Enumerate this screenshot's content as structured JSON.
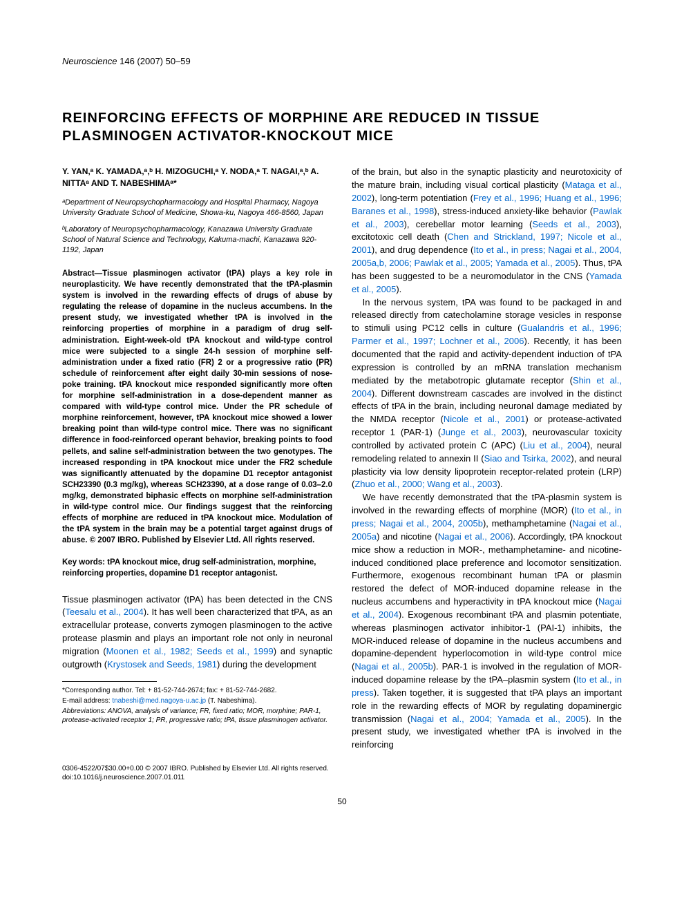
{
  "journal": {
    "name": "Neuroscience",
    "citation": "146 (2007) 50–59"
  },
  "title": "REINFORCING EFFECTS OF MORPHINE ARE REDUCED IN TISSUE PLASMINOGEN ACTIVATOR-KNOCKOUT MICE",
  "authors": "Y. YAN,ᵃ K. YAMADA,ᵃ,ᵇ H. MIZOGUCHI,ᵃ Y. NODA,ᵃ T. NAGAI,ᵃ,ᵇ A. NITTAᵃ AND T. NABESHIMAᵃ*",
  "affiliations": {
    "a": "ᵃDepartment of Neuropsychopharmacology and Hospital Pharmacy, Nagoya University Graduate School of Medicine, Showa-ku, Nagoya 466-8560, Japan",
    "b": "ᵇLaboratory of Neuropsychopharmacology, Kanazawa University Graduate School of Natural Science and Technology, Kakuma-machi, Kanazawa 920-1192, Japan"
  },
  "abstract": "Abstract—Tissue plasminogen activator (tPA) plays a key role in neuroplasticity. We have recently demonstrated that the tPA-plasmin system is involved in the rewarding effects of drugs of abuse by regulating the release of dopamine in the nucleus accumbens. In the present study, we investigated whether tPA is involved in the reinforcing properties of morphine in a paradigm of drug self-administration. Eight-week-old tPA knockout and wild-type control mice were subjected to a single 24-h session of morphine self-administration under a fixed ratio (FR) 2 or a progressive ratio (PR) schedule of reinforcement after eight daily 30-min sessions of nose-poke training. tPA knockout mice responded significantly more often for morphine self-administration in a dose-dependent manner as compared with wild-type control mice. Under the PR schedule of morphine reinforcement, however, tPA knockout mice showed a lower breaking point than wild-type control mice. There was no significant difference in food-reinforced operant behavior, breaking points to food pellets, and saline self-administration between the two genotypes. The increased responding in tPA knockout mice under the FR2 schedule was significantly attenuated by the dopamine D1 receptor antagonist SCH23390 (0.3 mg/kg), whereas SCH23390, at a dose range of 0.03–2.0 mg/kg, demonstrated biphasic effects on morphine self-administration in wild-type control mice. Our findings suggest that the reinforcing effects of morphine are reduced in tPA knockout mice. Modulation of the tPA system in the brain may be a potential target against drugs of abuse. © 2007 IBRO. Published by Elsevier Ltd. All rights reserved.",
  "keywords": "Key words: tPA knockout mice, drug self-administration, morphine, reinforcing properties, dopamine D1 receptor antagonist.",
  "body_left": {
    "p1a": "Tissue plasminogen activator (tPA) has been detected in the CNS (",
    "p1_link1": "Teesalu et al., 2004",
    "p1b": "). It has well been characterized that tPA, as an extracellular protease, converts zymogen plasminogen to the active protease plasmin and plays an important role not only in neuronal migration (",
    "p1_link2": "Moonen et al., 1982; Seeds et al., 1999",
    "p1c": ") and synaptic outgrowth (",
    "p1_link3": "Krystosek and Seeds, 1981",
    "p1d": ") during the development"
  },
  "footnotes": {
    "corr": "*Corresponding author. Tel: + 81-52-744-2674; fax: + 81-52-744-2682.",
    "email_label": "E-mail address: ",
    "email": "tnabeshi@med.nagoya-u.ac.jp",
    "email_tail": " (T. Nabeshima).",
    "abbrev": "Abbreviations: ANOVA, analysis of variance; FR, fixed ratio; MOR, morphine; PAR-1, protease-activated receptor 1; PR, progressive ratio; tPA, tissue plasminogen activator."
  },
  "body_right": {
    "p1a": "of the brain, but also in the synaptic plasticity and neurotoxicity of the mature brain, including visual cortical plasticity (",
    "p1_l1": "Mataga et al., 2002",
    "p1b": "), long-term potentiation (",
    "p1_l2": "Frey et al., 1996; Huang et al., 1996; Baranes et al., 1998",
    "p1c": "), stress-induced anxiety-like behavior (",
    "p1_l3": "Pawlak et al., 2003",
    "p1d": "), cerebellar motor learning (",
    "p1_l4": "Seeds et al., 2003",
    "p1e": "), excitotoxic cell death (",
    "p1_l5": "Chen and Strickland, 1997; Nicole et al., 2001",
    "p1f": "), and drug dependence (",
    "p1_l6": "Ito et al., in press; Nagai et al., 2004, 2005a,b, 2006; Pawlak et al., 2005; Yamada et al., 2005",
    "p1g": "). Thus, tPA has been suggested to be a neuromodulator in the CNS (",
    "p1_l7": "Yamada et al., 2005",
    "p1h": ").",
    "p2a": "In the nervous system, tPA was found to be packaged in and released directly from catecholamine storage vesicles in response to stimuli using PC12 cells in culture (",
    "p2_l1": "Gualandris et al., 1996; Parmer et al., 1997; Lochner et al., 2006",
    "p2b": "). Recently, it has been documented that the rapid and activity-dependent induction of tPA expression is controlled by an mRNA translation mechanism mediated by the metabotropic glutamate receptor (",
    "p2_l2": "Shin et al., 2004",
    "p2c": "). Different downstream cascades are involved in the distinct effects of tPA in the brain, including neuronal damage mediated by the NMDA receptor (",
    "p2_l3": "Nicole et al., 2001",
    "p2d": ") or protease-activated receptor 1 (PAR-1) (",
    "p2_l4": "Junge et al., 2003",
    "p2e": "), neurovascular toxicity controlled by activated protein C (APC) (",
    "p2_l5": "Liu et al., 2004",
    "p2f": "), neural remodeling related to annexin II (",
    "p2_l6": "Siao and Tsirka, 2002",
    "p2g": "), and neural plasticity via low density lipoprotein receptor-related protein (LRP) (",
    "p2_l7": "Zhuo et al., 2000; Wang et al., 2003",
    "p2h": ").",
    "p3a": "We have recently demonstrated that the tPA-plasmin system is involved in the rewarding effects of morphine (MOR) (",
    "p3_l1": "Ito et al., in press; Nagai et al., 2004, 2005b",
    "p3b": "), methamphetamine (",
    "p3_l2": "Nagai et al., 2005a",
    "p3c": ") and nicotine (",
    "p3_l3": "Nagai et al., 2006",
    "p3d": "). Accordingly, tPA knockout mice show a reduction in MOR-, methamphetamine- and nicotine-induced conditioned place preference and locomotor sensitization. Furthermore, exogenous recombinant human tPA or plasmin restored the defect of MOR-induced dopamine release in the nucleus accumbens and hyperactivity in tPA knockout mice (",
    "p3_l4": "Nagai et al., 2004",
    "p3e": "). Exogenous recombinant tPA and plasmin potentiate, whereas plasminogen activator inhibitor-1 (PAI-1) inhibits, the MOR-induced release of dopamine in the nucleus accumbens and dopamine-dependent hyperlocomotion in wild-type control mice (",
    "p3_l5": "Nagai et al., 2005b",
    "p3f": "). PAR-1 is involved in the regulation of MOR-induced dopamine release by the tPA–plasmin system (",
    "p3_l6": "Ito et al., in press",
    "p3g": "). Taken together, it is suggested that tPA plays an important role in the rewarding effects of MOR by regulating dopaminergic transmission (",
    "p3_l7": "Nagai et al., 2004; Yamada et al., 2005",
    "p3h": "). In the present study, we investigated whether tPA is involved in the reinforcing"
  },
  "bottom": {
    "copyright": "0306-4522/07$30.00+0.00 © 2007 IBRO. Published by Elsevier Ltd. All rights reserved.",
    "doi": "doi:10.1016/j.neuroscience.2007.01.011"
  },
  "page_number": "50",
  "colors": {
    "link": "#0066cc",
    "text": "#000000",
    "background": "#ffffff"
  }
}
